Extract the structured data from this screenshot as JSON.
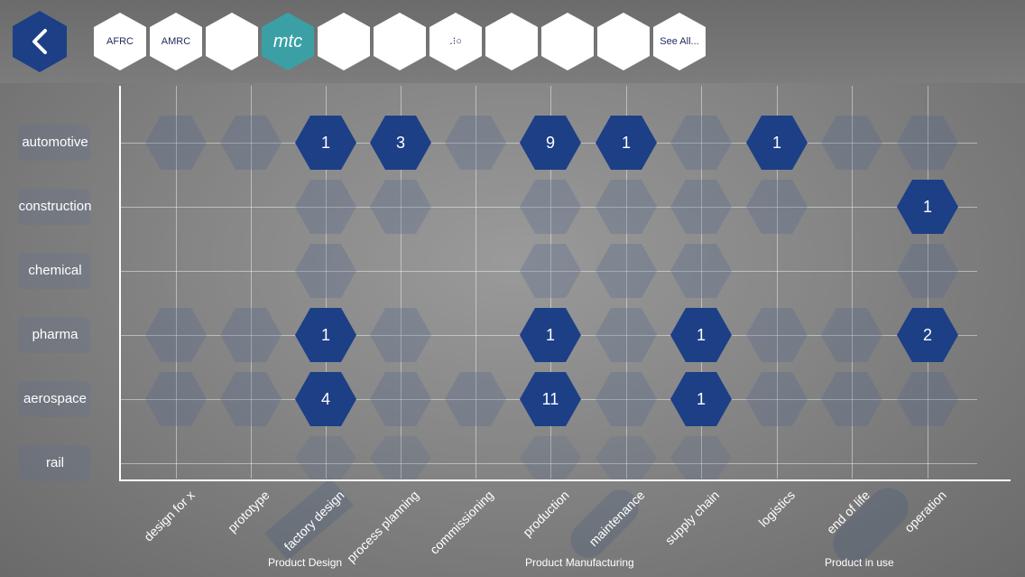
{
  "header": {
    "back_icon": "chevron-left-icon",
    "logos": [
      {
        "name": "afrc-logo",
        "label": "AFRC"
      },
      {
        "name": "amrc-logo",
        "label": "AMRC"
      },
      {
        "name": "spiral-logo",
        "label": ""
      },
      {
        "name": "mtc-logo",
        "label": "mtc"
      },
      {
        "name": "ring-logo",
        "label": ""
      },
      {
        "name": "concentric-logo",
        "label": ""
      },
      {
        "name": "dots-logo",
        "label": "․⁝○"
      },
      {
        "name": "star-logo",
        "label": ""
      },
      {
        "name": "castle-logo",
        "label": ""
      },
      {
        "name": "swirl-logo",
        "label": ""
      },
      {
        "name": "see-all-tile",
        "label": "See All..."
      }
    ]
  },
  "rows": [
    "automotive",
    "construction",
    "chemical",
    "pharma",
    "aerospace",
    "rail"
  ],
  "columns": [
    "design for x",
    "prototype",
    "factory design",
    "process planning",
    "commissioning",
    "production",
    "maintenance",
    "supply chain",
    "logistics",
    "end of life",
    "operation"
  ],
  "groups": [
    "Product Design",
    "Product Manufacturing",
    "Product in use"
  ],
  "matrix": [
    [
      "e",
      "e",
      "1",
      "3",
      "e",
      "9",
      "1",
      "e",
      "1",
      "e",
      "e"
    ],
    [
      "",
      "",
      "e",
      "e",
      "",
      "e",
      "e",
      "e",
      "e",
      "",
      "1"
    ],
    [
      "",
      "",
      "e",
      "",
      "",
      "e",
      "e",
      "e",
      "",
      "",
      "e"
    ],
    [
      "e",
      "e",
      "1",
      "e",
      "",
      "1",
      "e",
      "1",
      "e",
      "e",
      "2"
    ],
    [
      "e",
      "e",
      "4",
      "e",
      "e",
      "11",
      "e",
      "1",
      "e",
      "e",
      "e"
    ],
    [
      "",
      "",
      "f",
      "f",
      "",
      "f",
      "f",
      "f",
      "",
      "",
      ""
    ]
  ],
  "colors": {
    "accent": "#1c3f86",
    "teal": "#3aa0a5"
  }
}
